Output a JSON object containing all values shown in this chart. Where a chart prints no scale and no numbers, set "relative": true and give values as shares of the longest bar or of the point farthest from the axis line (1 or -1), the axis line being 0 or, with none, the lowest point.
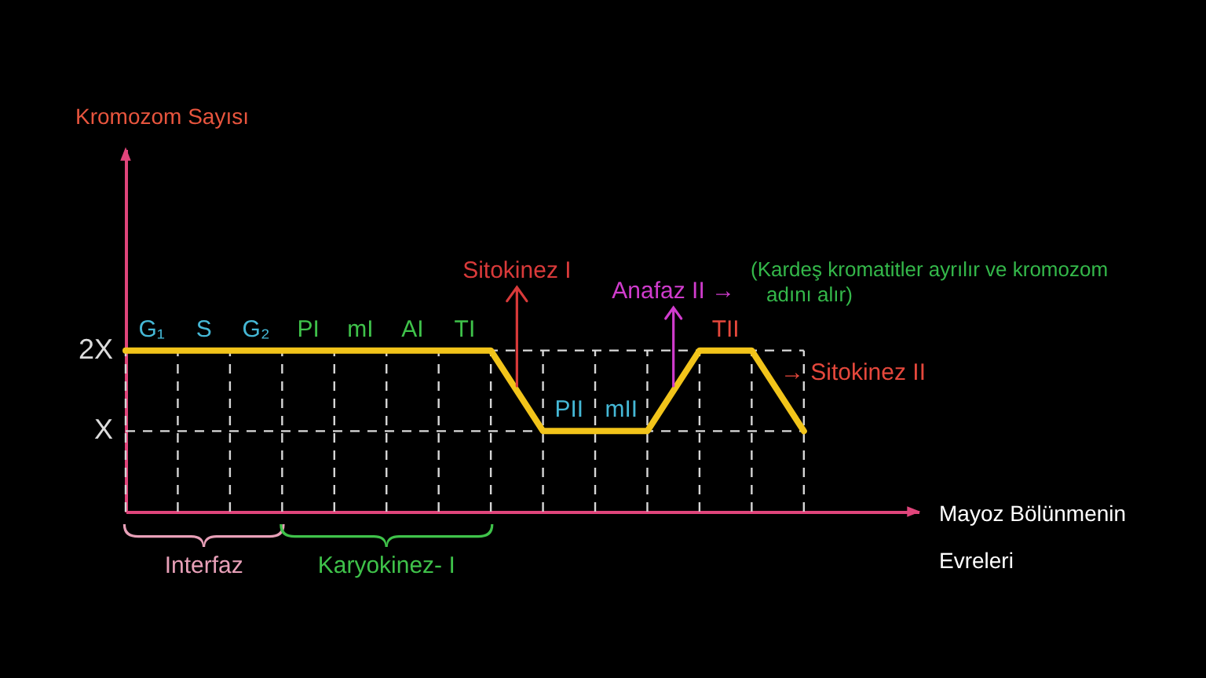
{
  "chart_data": {
    "type": "line",
    "relative": true,
    "categories": [
      null,
      null,
      null,
      null,
      null,
      null,
      null,
      null,
      null,
      null,
      null,
      null,
      null,
      null
    ],
    "values": [
      1,
      1,
      1,
      1,
      1,
      1,
      1,
      1,
      0.5,
      0.5,
      0.5,
      1,
      1,
      0.5
    ],
    "color": "#f2c41a",
    "grid": "x",
    "ref_lines": [
      {
        "axis": "y",
        "value": 1,
        "label": "2X",
        "color": "#dcdcdc",
        "line_style": "dashed"
      },
      {
        "axis": "y",
        "value": 0.5,
        "label": "X",
        "color": "#dcdcdc",
        "line_style": "dashed"
      }
    ],
    "annotations": [
      "G₁",
      "S",
      "G₂",
      "PI",
      "mI",
      "AI",
      "TI",
      "PII",
      "mII",
      "TII",
      "Sitokinez I",
      "Anafaz II →",
      "(Kardeş kromatitler ayrılır ve kromozom\nadını alır)",
      "→ Sitokinez II",
      "Interfaz",
      "Karyokinez- I",
      "Kromozom Sayısı",
      "Mayoz Bölünmenin\nEvreleri"
    ]
  }
}
